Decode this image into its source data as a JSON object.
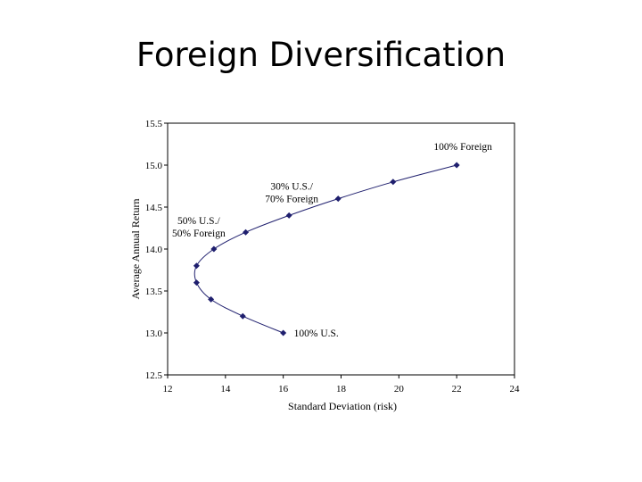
{
  "slide": {
    "title": "Foreign Diversification"
  },
  "chart_data": {
    "type": "scatter",
    "title": "",
    "xlabel": "Standard Deviation (risk)",
    "ylabel": "Average Annual Return",
    "xlim": [
      12,
      24
    ],
    "ylim": [
      12.5,
      15.5
    ],
    "xticks": [
      "12",
      "14",
      "16",
      "18",
      "20",
      "22",
      "24"
    ],
    "yticks": [
      "12.5",
      "13.0",
      "13.5",
      "14.0",
      "14.5",
      "15.0",
      "15.5"
    ],
    "grid": false,
    "legend": "none",
    "series": [
      {
        "x": [
          16.0,
          14.6,
          13.5,
          13.0,
          13.0,
          13.6,
          14.7,
          16.2,
          17.9,
          19.8,
          22.0
        ],
        "y": [
          13.0,
          13.2,
          13.4,
          13.6,
          13.8,
          14.0,
          14.2,
          14.4,
          14.6,
          14.8,
          15.0
        ],
        "color": "#1f1f6e"
      }
    ],
    "annotations": [
      {
        "lines": [
          "100% U.S."
        ],
        "x": 16.0,
        "y": 13.0,
        "anchor": "right"
      },
      {
        "lines": [
          "50% U.S./",
          "50% Foreign"
        ],
        "x": 13.6,
        "y": 14.0,
        "anchor": "upper-left"
      },
      {
        "lines": [
          "30% U.S./",
          "70% Foreign"
        ],
        "x": 16.2,
        "y": 14.4,
        "anchor": "upper-right"
      },
      {
        "lines": [
          "100% Foreign"
        ],
        "x": 22.0,
        "y": 15.0,
        "anchor": "upper-left"
      }
    ]
  }
}
